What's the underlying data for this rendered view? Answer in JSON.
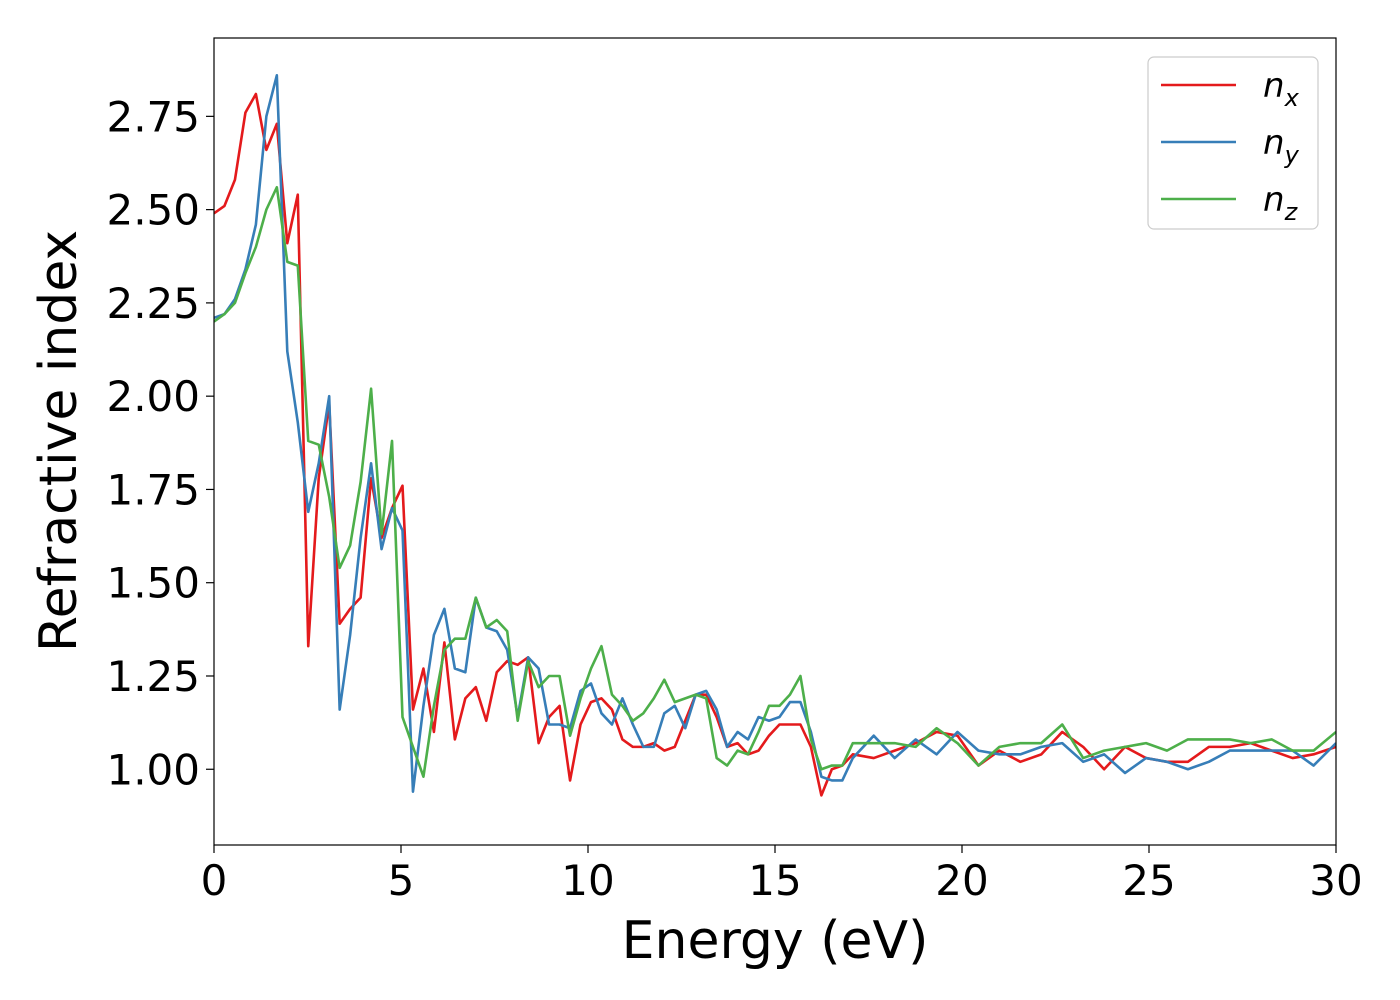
{
  "chart_data": {
    "type": "line",
    "x_label": "Energy (eV)",
    "y_label": "Refractive index",
    "x": [
      0,
      0.28,
      0.56,
      0.84,
      1.12,
      1.4,
      1.68,
      1.96,
      2.24,
      2.52,
      2.8,
      3.08,
      3.36,
      3.64,
      3.92,
      4.2,
      4.48,
      4.76,
      5.04,
      5.32,
      5.6,
      5.88,
      6.16,
      6.44,
      6.72,
      7.0,
      7.28,
      7.56,
      7.84,
      8.12,
      8.4,
      8.68,
      8.96,
      9.24,
      9.52,
      9.8,
      10.08,
      10.36,
      10.64,
      10.92,
      11.2,
      11.48,
      11.76,
      12.04,
      12.32,
      12.6,
      12.88,
      13.16,
      13.44,
      13.72,
      14.0,
      14.28,
      14.56,
      14.84,
      15.12,
      15.4,
      15.68,
      15.96,
      16.24,
      16.52,
      16.8,
      17.08,
      17.64,
      18.2,
      18.76,
      19.32,
      19.88,
      20.44,
      21.0,
      21.56,
      22.12,
      22.68,
      23.24,
      23.8,
      24.36,
      24.92,
      25.48,
      26.04,
      26.6,
      27.16,
      27.72,
      28.28,
      28.84,
      29.4,
      30
    ],
    "series": [
      {
        "name": "nx",
        "color": "#e41a1c",
        "values": [
          2.49,
          2.51,
          2.58,
          2.76,
          2.81,
          2.66,
          2.73,
          2.41,
          2.54,
          1.33,
          1.78,
          1.98,
          1.39,
          1.43,
          1.46,
          1.78,
          1.62,
          1.7,
          1.76,
          1.16,
          1.27,
          1.1,
          1.34,
          1.08,
          1.19,
          1.22,
          1.13,
          1.26,
          1.29,
          1.28,
          1.3,
          1.07,
          1.14,
          1.17,
          0.97,
          1.12,
          1.18,
          1.19,
          1.16,
          1.08,
          1.06,
          1.06,
          1.07,
          1.05,
          1.06,
          1.13,
          1.2,
          1.2,
          1.14,
          1.06,
          1.07,
          1.04,
          1.05,
          1.09,
          1.12,
          1.12,
          1.12,
          1.06,
          0.93,
          1.0,
          1.01,
          1.04,
          1.03,
          1.05,
          1.07,
          1.1,
          1.09,
          1.01,
          1.05,
          1.02,
          1.04,
          1.1,
          1.06,
          1.0,
          1.06,
          1.03,
          1.02,
          1.02,
          1.06,
          1.06,
          1.07,
          1.05,
          1.03,
          1.04,
          1.06
        ]
      },
      {
        "name": "ny",
        "color": "#377eb8",
        "values": [
          2.21,
          2.22,
          2.26,
          2.34,
          2.46,
          2.75,
          2.86,
          2.12,
          1.93,
          1.69,
          1.82,
          2.0,
          1.16,
          1.36,
          1.62,
          1.82,
          1.59,
          1.7,
          1.64,
          0.94,
          1.17,
          1.36,
          1.43,
          1.27,
          1.26,
          1.46,
          1.38,
          1.37,
          1.32,
          1.14,
          1.3,
          1.27,
          1.12,
          1.12,
          1.11,
          1.21,
          1.23,
          1.15,
          1.12,
          1.19,
          1.12,
          1.06,
          1.06,
          1.15,
          1.17,
          1.11,
          1.2,
          1.21,
          1.16,
          1.06,
          1.1,
          1.08,
          1.14,
          1.13,
          1.14,
          1.18,
          1.18,
          1.1,
          0.98,
          0.97,
          0.97,
          1.03,
          1.09,
          1.03,
          1.08,
          1.04,
          1.1,
          1.05,
          1.04,
          1.04,
          1.06,
          1.07,
          1.02,
          1.04,
          0.99,
          1.03,
          1.02,
          1.0,
          1.02,
          1.05,
          1.05,
          1.05,
          1.05,
          1.01,
          1.07
        ]
      },
      {
        "name": "nz",
        "color": "#4daf4a",
        "values": [
          2.2,
          2.22,
          2.25,
          2.33,
          2.4,
          2.5,
          2.56,
          2.36,
          2.35,
          1.88,
          1.87,
          1.73,
          1.54,
          1.6,
          1.77,
          2.02,
          1.63,
          1.88,
          1.14,
          1.06,
          0.98,
          1.17,
          1.32,
          1.35,
          1.35,
          1.46,
          1.38,
          1.4,
          1.37,
          1.13,
          1.29,
          1.22,
          1.25,
          1.25,
          1.09,
          1.19,
          1.27,
          1.33,
          1.2,
          1.17,
          1.13,
          1.15,
          1.19,
          1.24,
          1.18,
          1.19,
          1.2,
          1.19,
          1.03,
          1.01,
          1.05,
          1.04,
          1.1,
          1.17,
          1.17,
          1.2,
          1.25,
          1.08,
          1.0,
          1.01,
          1.01,
          1.07,
          1.07,
          1.07,
          1.06,
          1.11,
          1.07,
          1.01,
          1.06,
          1.07,
          1.07,
          1.12,
          1.03,
          1.05,
          1.06,
          1.07,
          1.05,
          1.08,
          1.08,
          1.08,
          1.07,
          1.08,
          1.05,
          1.05,
          1.1
        ]
      }
    ],
    "xlim": [
      0,
      30
    ],
    "xticks": [
      0,
      5,
      10,
      15,
      20,
      25,
      30
    ],
    "ylim": [
      0.797,
      2.96
    ],
    "yticks": [
      {
        "value": 1,
        "label": "1.00"
      },
      {
        "value": 1.25,
        "label": "1.25"
      },
      {
        "value": 1.5,
        "label": "1.50"
      },
      {
        "value": 1.75,
        "label": "1.75"
      },
      {
        "value": 2,
        "label": "2.00"
      },
      {
        "value": 2.25,
        "label": "2.25"
      },
      {
        "value": 2.5,
        "label": "2.50"
      },
      {
        "value": 2.75,
        "label": "2.75"
      }
    ],
    "legend": "upper right"
  }
}
